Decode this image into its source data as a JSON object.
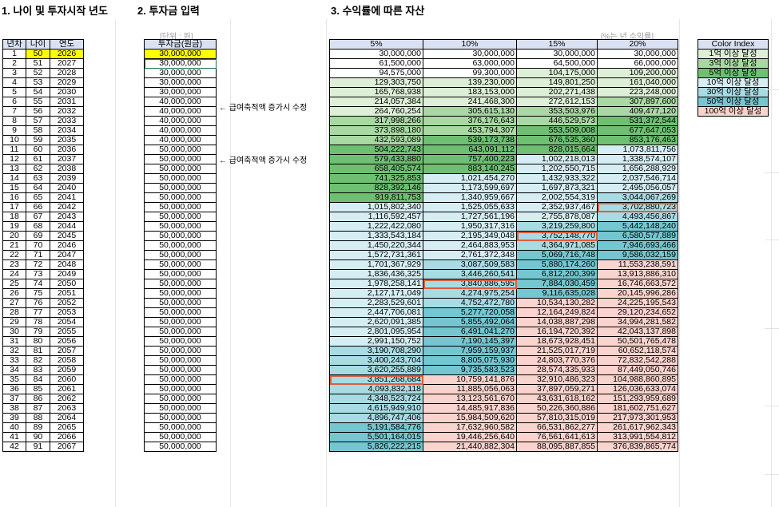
{
  "titles": {
    "t1": "1. 나이 및 투자시작 년도",
    "t2": "2. 투자금 입력",
    "t3": "3. 수익률에 따른 자산"
  },
  "notes": {
    "unit": "[단위 : 원]",
    "rate_unit": "[%는 년 수익률]"
  },
  "side_notes": [
    "← 급여축적액 증가시 수정",
    "← 급여축적액 증가시 수정"
  ],
  "colors": {
    "header": "#d9e1f2",
    "yellow": "#ffff00",
    "c1": "#ddefd6",
    "c3": "#a9d9a3",
    "c5": "#6fbf73",
    "c10": "#d6eef3",
    "c30": "#a8dbe3",
    "c50": "#74c6d0",
    "c100": "#f9d3cd",
    "highlight": "#e25b3a"
  },
  "table1": {
    "headers": [
      "년차",
      "나이",
      "연도"
    ],
    "rows": [
      [
        "1",
        "50",
        "2026"
      ],
      [
        "2",
        "51",
        "2027"
      ],
      [
        "3",
        "52",
        "2028"
      ],
      [
        "4",
        "53",
        "2029"
      ],
      [
        "5",
        "54",
        "2030"
      ],
      [
        "6",
        "55",
        "2031"
      ],
      [
        "7",
        "56",
        "2032"
      ],
      [
        "8",
        "57",
        "2033"
      ],
      [
        "9",
        "58",
        "2034"
      ],
      [
        "10",
        "59",
        "2035"
      ],
      [
        "11",
        "60",
        "2036"
      ],
      [
        "12",
        "61",
        "2037"
      ],
      [
        "13",
        "62",
        "2038"
      ],
      [
        "14",
        "63",
        "2039"
      ],
      [
        "15",
        "64",
        "2040"
      ],
      [
        "16",
        "65",
        "2041"
      ],
      [
        "17",
        "66",
        "2042"
      ],
      [
        "18",
        "67",
        "2043"
      ],
      [
        "19",
        "68",
        "2044"
      ],
      [
        "20",
        "69",
        "2045"
      ],
      [
        "21",
        "70",
        "2046"
      ],
      [
        "22",
        "71",
        "2047"
      ],
      [
        "23",
        "72",
        "2048"
      ],
      [
        "24",
        "73",
        "2049"
      ],
      [
        "25",
        "74",
        "2050"
      ],
      [
        "26",
        "75",
        "2051"
      ],
      [
        "27",
        "76",
        "2052"
      ],
      [
        "28",
        "77",
        "2053"
      ],
      [
        "29",
        "78",
        "2054"
      ],
      [
        "30",
        "79",
        "2055"
      ],
      [
        "31",
        "80",
        "2056"
      ],
      [
        "32",
        "81",
        "2057"
      ],
      [
        "33",
        "82",
        "2058"
      ],
      [
        "34",
        "83",
        "2059"
      ],
      [
        "35",
        "84",
        "2060"
      ],
      [
        "36",
        "85",
        "2061"
      ],
      [
        "37",
        "86",
        "2062"
      ],
      [
        "38",
        "87",
        "2063"
      ],
      [
        "39",
        "88",
        "2064"
      ],
      [
        "40",
        "89",
        "2065"
      ],
      [
        "41",
        "90",
        "2066"
      ],
      [
        "42",
        "91",
        "2067"
      ]
    ]
  },
  "table2": {
    "header": "투자금(원금)",
    "values": [
      "30,000,000",
      "30,000,000",
      "30,000,000",
      "30,000,000",
      "30,000,000",
      "40,000,000",
      "40,000,000",
      "40,000,000",
      "40,000,000",
      "40,000,000",
      "50,000,000",
      "50,000,000",
      "50,000,000",
      "50,000,000",
      "50,000,000",
      "50,000,000",
      "50,000,000",
      "50,000,000",
      "50,000,000",
      "50,000,000",
      "50,000,000",
      "50,000,000",
      "50,000,000",
      "50,000,000",
      "50,000,000",
      "50,000,000",
      "50,000,000",
      "50,000,000",
      "50,000,000",
      "50,000,000",
      "50,000,000",
      "50,000,000",
      "50,000,000",
      "50,000,000",
      "50,000,000",
      "50,000,000",
      "50,000,000",
      "50,000,000",
      "50,000,000",
      "50,000,000",
      "50,000,000",
      "50,000,000"
    ]
  },
  "table3": {
    "headers": [
      "5%",
      "10%",
      "15%",
      "20%"
    ],
    "rows": [
      [
        "30,000,000",
        "30,000,000",
        "30,000,000",
        "30,000,000"
      ],
      [
        "61,500,000",
        "63,000,000",
        "64,500,000",
        "66,000,000"
      ],
      [
        "94,575,000",
        "99,300,000",
        "104,175,000",
        "109,200,000"
      ],
      [
        "129,303,750",
        "139,230,000",
        "149,801,250",
        "161,040,000"
      ],
      [
        "165,768,938",
        "183,153,000",
        "202,271,438",
        "223,248,000"
      ],
      [
        "214,057,384",
        "241,468,300",
        "272,612,153",
        "307,897,600"
      ],
      [
        "264,760,254",
        "305,615,130",
        "353,503,976",
        "409,477,120"
      ],
      [
        "317,998,266",
        "376,176,643",
        "446,529,573",
        "531,372,544"
      ],
      [
        "373,898,180",
        "453,794,307",
        "553,509,008",
        "677,647,053"
      ],
      [
        "432,593,089",
        "539,173,738",
        "676,535,360",
        "853,176,463"
      ],
      [
        "504,222,743",
        "643,091,112",
        "828,015,664",
        "1,073,811,756"
      ],
      [
        "579,433,880",
        "757,400,223",
        "1,002,218,013",
        "1,338,574,107"
      ],
      [
        "658,405,574",
        "883,140,245",
        "1,202,550,715",
        "1,656,288,929"
      ],
      [
        "741,325,853",
        "1,021,454,270",
        "1,432,933,322",
        "2,037,546,714"
      ],
      [
        "828,392,146",
        "1,173,599,697",
        "1,697,873,321",
        "2,495,056,057"
      ],
      [
        "919,811,753",
        "1,340,959,667",
        "2,002,554,319",
        "3,044,067,269"
      ],
      [
        "1,015,802,340",
        "1,525,055,633",
        "2,352,937,467",
        "3,702,880,723"
      ],
      [
        "1,116,592,457",
        "1,727,561,196",
        "2,755,878,087",
        "4,493,456,867"
      ],
      [
        "1,222,422,080",
        "1,950,317,316",
        "3,219,259,800",
        "5,442,148,240"
      ],
      [
        "1,333,543,184",
        "2,195,349,048",
        "3,752,148,770",
        "6,580,577,889"
      ],
      [
        "1,450,220,344",
        "2,464,883,953",
        "4,364,971,085",
        "7,946,693,466"
      ],
      [
        "1,572,731,361",
        "2,761,372,348",
        "5,069,716,748",
        "9,586,032,159"
      ],
      [
        "1,701,367,929",
        "3,087,509,583",
        "5,880,174,260",
        "11,553,238,591"
      ],
      [
        "1,836,436,325",
        "3,446,260,541",
        "6,812,200,399",
        "13,913,886,310"
      ],
      [
        "1,978,258,141",
        "3,840,886,595",
        "7,884,030,459",
        "16,746,663,572"
      ],
      [
        "2,127,171,049",
        "4,274,975,254",
        "9,116,635,028",
        "20,145,996,286"
      ],
      [
        "2,283,529,601",
        "4,752,472,780",
        "10,534,130,282",
        "24,225,195,543"
      ],
      [
        "2,447,706,081",
        "5,277,720,058",
        "12,164,249,824",
        "29,120,234,652"
      ],
      [
        "2,620,091,385",
        "5,855,492,064",
        "14,038,887,298",
        "34,994,281,582"
      ],
      [
        "2,801,095,954",
        "6,491,041,270",
        "16,194,720,392",
        "42,043,137,898"
      ],
      [
        "2,991,150,752",
        "7,190,145,397",
        "18,673,928,451",
        "50,501,765,478"
      ],
      [
        "3,190,708,290",
        "7,959,159,937",
        "21,525,017,719",
        "60,652,118,574"
      ],
      [
        "3,400,243,704",
        "8,805,075,930",
        "24,803,770,376",
        "72,832,542,288"
      ],
      [
        "3,620,255,889",
        "9,735,583,523",
        "28,574,335,933",
        "87,449,050,746"
      ],
      [
        "3,851,268,684",
        "10,759,141,876",
        "32,910,486,323",
        "104,988,860,895"
      ],
      [
        "4,093,832,118",
        "11,885,056,063",
        "37,897,059,271",
        "126,036,633,074"
      ],
      [
        "4,348,523,724",
        "13,123,561,670",
        "43,631,618,162",
        "151,293,959,689"
      ],
      [
        "4,615,949,910",
        "14,485,917,836",
        "50,226,360,886",
        "181,602,751,627"
      ],
      [
        "4,896,747,406",
        "15,984,509,620",
        "57,810,315,019",
        "217,973,301,953"
      ],
      [
        "5,191,584,776",
        "17,632,960,582",
        "66,531,862,277",
        "261,617,962,343"
      ],
      [
        "5,501,164,015",
        "19,446,256,640",
        "76,561,641,613",
        "313,991,554,812"
      ],
      [
        "5,826,222,215",
        "21,440,882,304",
        "88,095,887,855",
        "376,839,865,774"
      ]
    ]
  },
  "legend": {
    "title": "Color Index",
    "items": [
      {
        "label": "1억 이상 달성",
        "color_key": "c1"
      },
      {
        "label": "3억 이상 달성",
        "color_key": "c3"
      },
      {
        "label": "5억 이상 달성",
        "color_key": "c5"
      },
      {
        "label": "10억 이상 달성",
        "color_key": "c10"
      },
      {
        "label": "30억 이상 달성",
        "color_key": "c30"
      },
      {
        "label": "50억 이상 달성",
        "color_key": "c50"
      },
      {
        "label": "100억 이상 달성",
        "color_key": "c100"
      }
    ]
  }
}
